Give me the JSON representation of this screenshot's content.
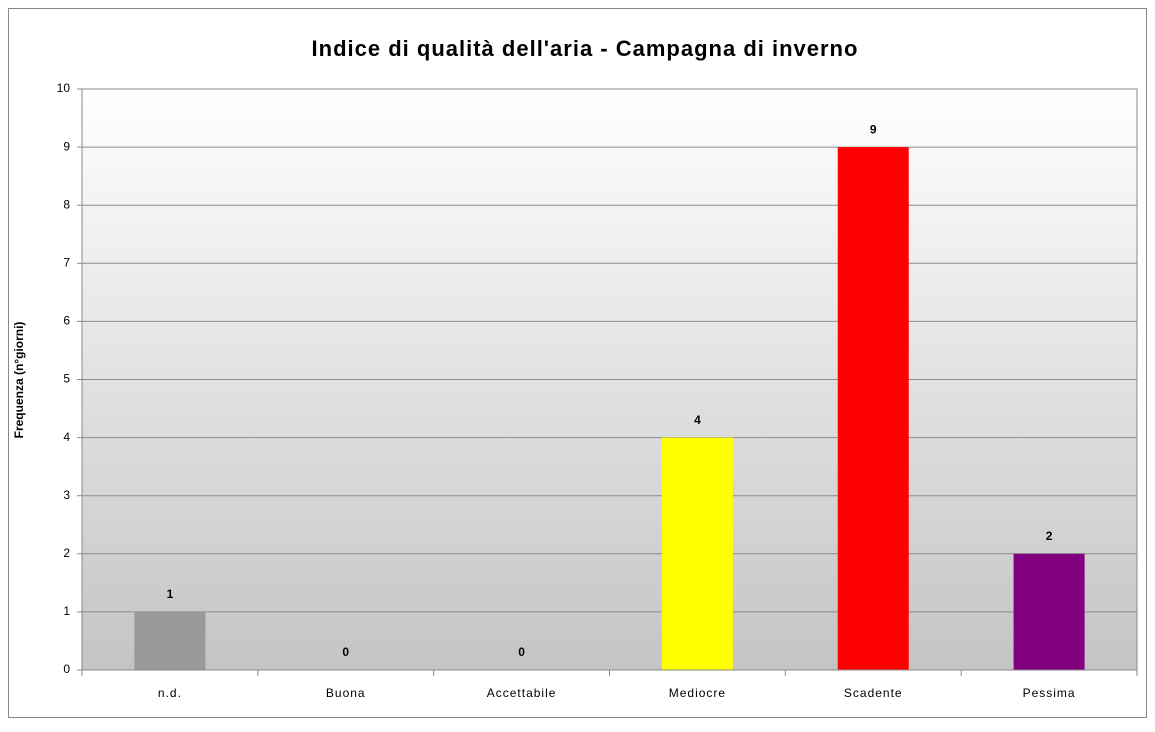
{
  "chart_data": {
    "type": "bar",
    "title": "Indice di qualità dell'aria - Campagna di inverno",
    "y_label": "Frequenza (n°giorni)",
    "categories": [
      "n.d.",
      "Buona",
      "Accettabile",
      "Mediocre",
      "Scadente",
      "Pessima"
    ],
    "values": [
      1,
      0,
      0,
      4,
      9,
      2
    ],
    "colors": [
      "#999999",
      null,
      null,
      "#ffff00",
      "#ff0000",
      "#800080"
    ],
    "ylim": [
      0,
      10
    ],
    "yticks": [
      0,
      1,
      2,
      3,
      4,
      5,
      6,
      7,
      8,
      9,
      10
    ],
    "grid": true
  }
}
